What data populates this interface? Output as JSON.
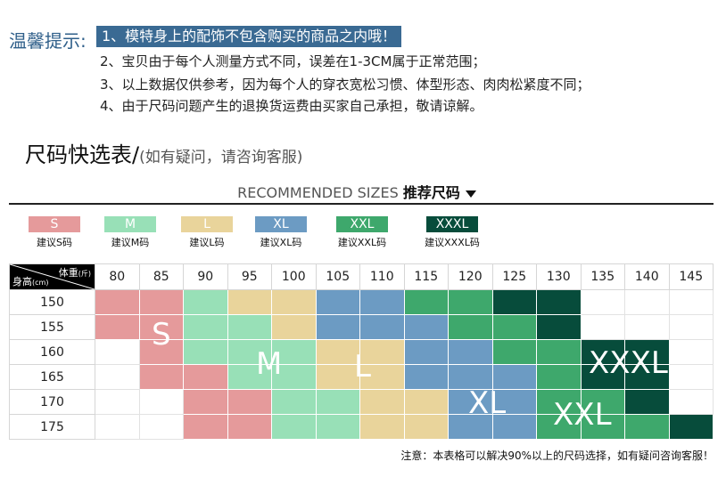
{
  "tips": {
    "label": "温馨提示:",
    "lines": [
      "1、模特身上的配饰不包含购买的商品之内哦！",
      "2、宝贝由于每个人测量方式不同，误差在1-3CM属于正常范围；",
      "3、以上数据仅供参考，因为每个人的穿衣宽松习惯、体型形态、肉肉松紧度不同；",
      "4、由于尺码问题产生的退换货运费由买家自己承担，敬请谅解。"
    ]
  },
  "quick": {
    "title": "尺码快选表/",
    "subtitle": "(如有疑问，请咨询客服)"
  },
  "recommended": {
    "en": "RECOMMENDED SIZES",
    "zh": "推荐尺码"
  },
  "colors": {
    "S": "#e59a9b",
    "M": "#98e0b7",
    "L": "#e9d49b",
    "XL": "#6c9bc3",
    "XXL": "#3ea86c",
    "XXXL": "#074c3b"
  },
  "legend": [
    {
      "size": "S",
      "label": "S",
      "caption": "建议S码"
    },
    {
      "size": "M",
      "label": "M",
      "caption": "建议M码"
    },
    {
      "size": "L",
      "label": "L",
      "caption": "建议L码"
    },
    {
      "size": "XL",
      "label": "XL",
      "caption": "建议XL码"
    },
    {
      "size": "XXL",
      "label": "XXL",
      "caption": "建议XXL码"
    },
    {
      "size": "XXXL",
      "label": "XXXL",
      "caption": "建议XXXL码"
    }
  ],
  "table": {
    "weight_label": "体重",
    "weight_unit": "(斤)",
    "height_label": "身高",
    "height_unit": "(cm)",
    "weights": [
      "80",
      "85",
      "90",
      "95",
      "100",
      "105",
      "110",
      "115",
      "120",
      "125",
      "130",
      "135",
      "140",
      "145"
    ],
    "heights": [
      "150",
      "155",
      "160",
      "165",
      "170",
      "175"
    ],
    "cells": [
      [
        "S",
        "S",
        "M",
        "L",
        "L",
        "XL",
        "XL",
        "XXL",
        "XXL",
        "XXXL",
        "XXXL",
        "",
        "",
        ""
      ],
      [
        "S",
        "S",
        "M",
        "M",
        "L",
        "XL",
        "XL",
        "XL",
        "XXL",
        "XXL",
        "XXXL",
        "",
        "",
        ""
      ],
      [
        "",
        "S",
        "M",
        "M",
        "M",
        "L",
        "L",
        "XL",
        "XL",
        "XXL",
        "XXL",
        "XXXL",
        "XXXL",
        ""
      ],
      [
        "",
        "S",
        "S",
        "M",
        "M",
        "L",
        "L",
        "XL",
        "XL",
        "XL",
        "XXL",
        "XXXL",
        "XXXL",
        ""
      ],
      [
        "",
        "",
        "S",
        "S",
        "M",
        "M",
        "L",
        "L",
        "XL",
        "XL",
        "XXL",
        "XXL",
        "XXXL",
        ""
      ],
      [
        "",
        "",
        "S",
        "S",
        "M",
        "M",
        "L",
        "L",
        "XL",
        "XL",
        "XXL",
        "XXL",
        "XXL",
        "XXXL"
      ]
    ],
    "big_labels": [
      "S",
      "M",
      "L",
      "XL",
      "XXL",
      "XXXL"
    ]
  },
  "note": "注意：本表格可以解决90%以上的尺码选择，如有疑问咨询客服！"
}
